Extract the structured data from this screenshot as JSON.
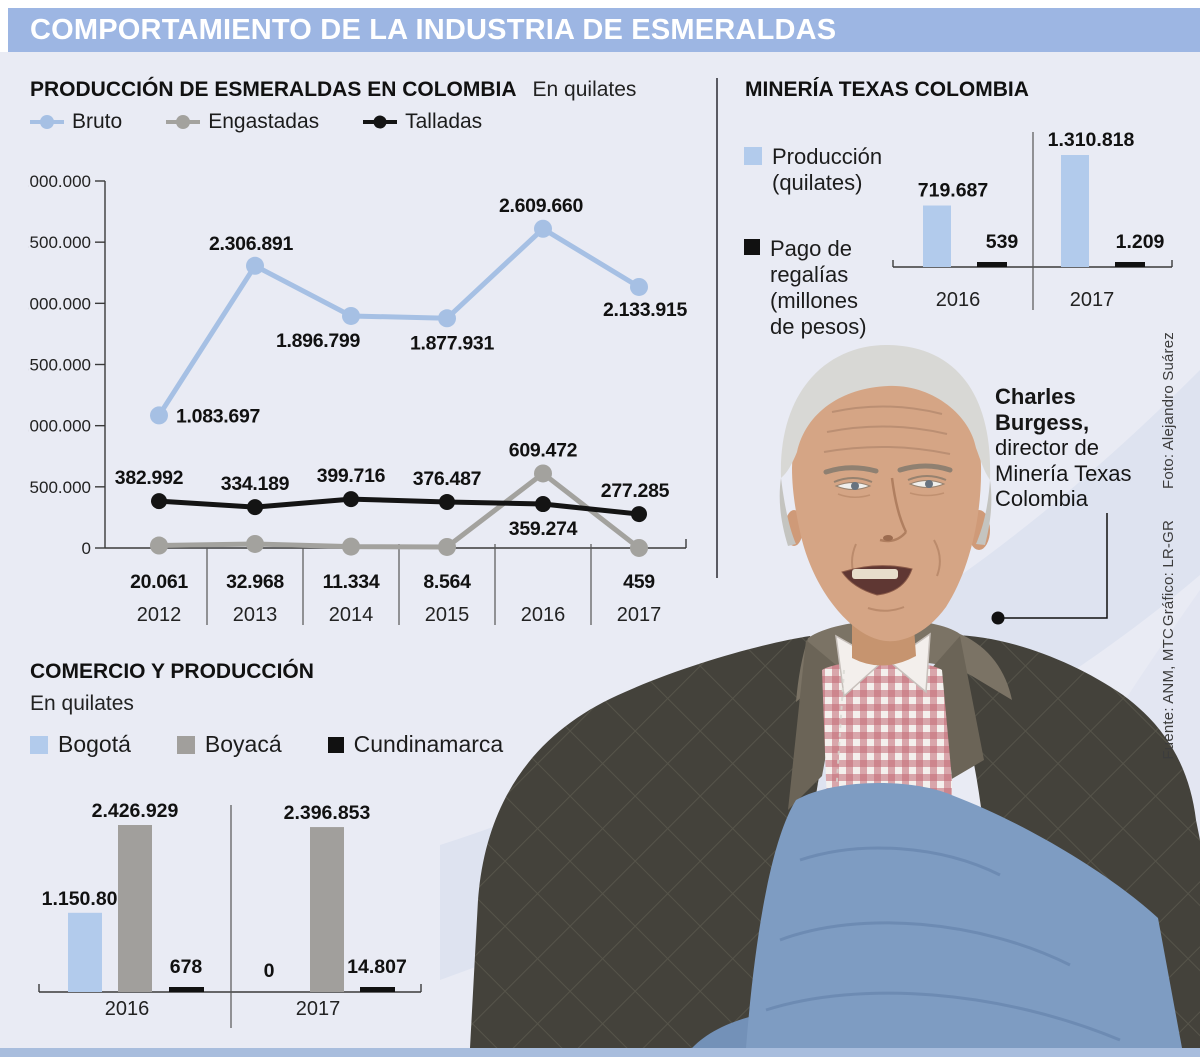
{
  "header": {
    "title": "COMPORTAMIENTO DE LA INDUSTRIA DE ESMERALDAS"
  },
  "colors": {
    "header_bg": "#9db6e3",
    "page_bg": "#e9ebf4",
    "bruto": "#a6c0e4",
    "engastadas": "#a3a29e",
    "talladas": "#141414",
    "bar_blue": "#b2cbec",
    "bar_gray": "#a19f9c",
    "bar_black": "#111111",
    "footer": "#a8bddd"
  },
  "mtc_legend": {
    "produccion": "Producción\n(quilates)",
    "regalias": "Pago de\nregalías\n(millones\nde pesos)"
  },
  "photo_caption": {
    "lines": [
      "Charles",
      "Burgess,",
      "director de",
      "Minería Texas",
      "Colombia"
    ]
  },
  "credits": {
    "foto": "Foto: Alejandro Suárez",
    "grafico": "Gráfico: LR-GR",
    "fuente": "Fuente: ANM, MTC"
  },
  "chart_data": [
    {
      "id": "produccion",
      "type": "line",
      "title": "PRODUCCIÓN DE ESMERALDAS EN COLOMBIA",
      "subtitle": "En quilates",
      "categories": [
        2012,
        2013,
        2014,
        2015,
        2016,
        2017
      ],
      "series": [
        {
          "name": "Bruto",
          "color": "#a6c0e4",
          "values": [
            1083697,
            2306891,
            1896799,
            1877931,
            2609660,
            2133915
          ]
        },
        {
          "name": "Engastadas",
          "color": "#a3a29e",
          "values": [
            20061,
            32968,
            11334,
            8564,
            609472,
            459
          ]
        },
        {
          "name": "Talladas",
          "color": "#141414",
          "values": [
            382992,
            334189,
            399716,
            376487,
            359274,
            277285
          ]
        }
      ],
      "ylim": [
        0,
        3000000
      ],
      "ytick_step": 500000,
      "grid": false,
      "legend_position": "top",
      "layout": {
        "label_placement": {
          "Bruto": [
            [
              "right",
              17,
              7
            ],
            [
              "above",
              -4,
              -16
            ],
            [
              "below",
              -33,
              31
            ],
            [
              "below",
              5,
              31
            ],
            [
              "above",
              -2,
              -17
            ],
            [
              "below",
              6,
              29
            ]
          ],
          "Engastadas": [
            [
              "axis",
              0,
              0
            ],
            [
              "axis",
              0,
              0
            ],
            [
              "axis",
              0,
              0
            ],
            [
              "axis",
              0,
              0
            ],
            [
              "above",
              0,
              -17
            ],
            [
              "axis",
              0,
              0
            ]
          ],
          "Talladas": [
            [
              "above",
              -10,
              -17
            ],
            [
              "above",
              0,
              -17
            ],
            [
              "above",
              0,
              -17
            ],
            [
              "above",
              0,
              -17
            ],
            [
              "below",
              0,
              31
            ],
            [
              "above",
              -4,
              -17
            ]
          ]
        }
      }
    },
    {
      "id": "mtc",
      "type": "bar",
      "title": "MINERÍA TEXAS COLOMBIA",
      "categories": [
        2016,
        2017
      ],
      "series": [
        {
          "name": "Producción (quilates)",
          "color": "#b2cbec",
          "values": [
            719687,
            1310818
          ]
        },
        {
          "name": "Pago de regalías (millones de pesos)",
          "color": "#111111",
          "values": [
            539,
            1209
          ]
        }
      ],
      "legend_position": "left",
      "grid": false
    },
    {
      "id": "comercio",
      "type": "bar",
      "title": "COMERCIO Y PRODUCCIÓN",
      "subtitle": "En quilates",
      "categories": [
        2016,
        2017
      ],
      "series": [
        {
          "name": "Bogotá",
          "color": "#b2cbec",
          "values": [
            1150802,
            0
          ]
        },
        {
          "name": "Boyacá",
          "color": "#a19f9c",
          "values": [
            2426929,
            2396853
          ]
        },
        {
          "name": "Cundinamarca",
          "color": "#111111",
          "values": [
            678,
            14807
          ]
        }
      ],
      "legend_position": "top",
      "grid": false
    }
  ]
}
